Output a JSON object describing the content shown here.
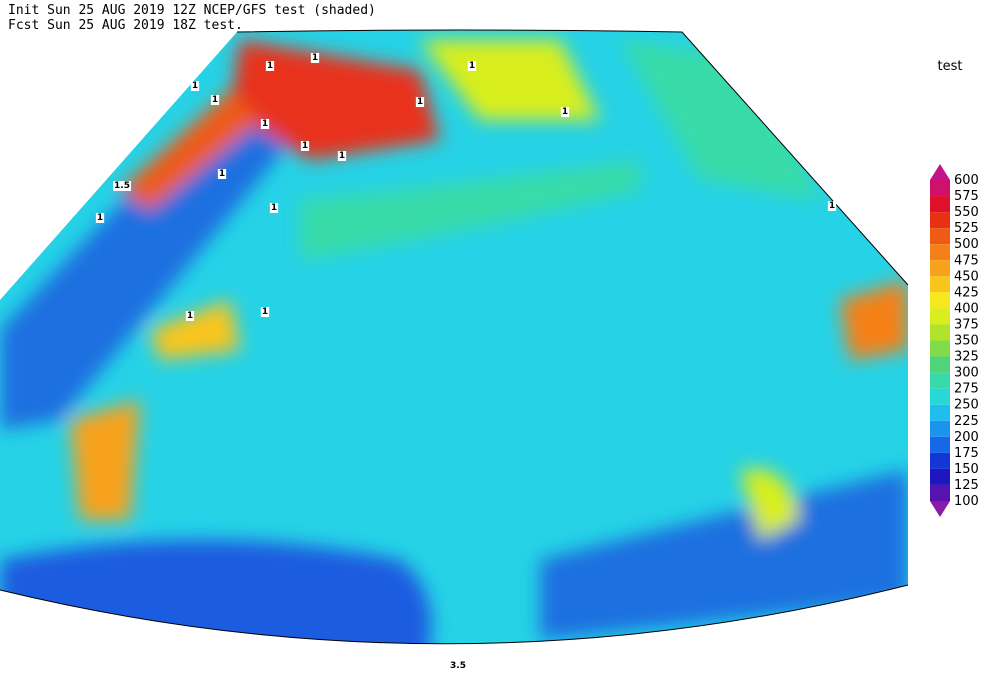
{
  "header": {
    "init": "Init  Sun 25 AUG 2019 12Z  NCEP/GFS test (shaded)",
    "fcst": "Fcst Sun 25 AUG 2019 18Z  test."
  },
  "colorbar": {
    "title": "test",
    "labels": [
      "600",
      "575",
      "550",
      "525",
      "500",
      "475",
      "450",
      "425",
      "400",
      "375",
      "350",
      "325",
      "300",
      "275",
      "250",
      "225",
      "200",
      "175",
      "150",
      "125",
      "100"
    ],
    "colors": [
      "#c4148a",
      "#d0116b",
      "#e00f2a",
      "#e83015",
      "#ef5a14",
      "#f58018",
      "#f7a21a",
      "#f9c51b",
      "#f5e81c",
      "#d8ee1f",
      "#b0e32b",
      "#80dc48",
      "#50d47a",
      "#38dba8",
      "#26d9d7",
      "#1ebfef",
      "#1a94ef",
      "#1668e6",
      "#1337d6",
      "#2016c0",
      "#5513b0",
      "#8a1aa8"
    ]
  },
  "contour_labels": [
    "1",
    "1",
    "1",
    "1",
    "1",
    "1",
    "1",
    "1",
    "1",
    "1",
    "1",
    "1",
    "1",
    "1",
    "1",
    "1",
    "1.5",
    "3.5"
  ]
}
